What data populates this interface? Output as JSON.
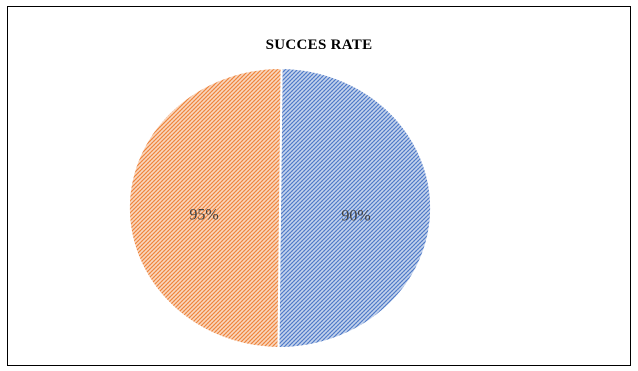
{
  "chart_data": {
    "type": "pie",
    "title": "SUCCES RATE",
    "slices": [
      {
        "label": "90%",
        "value": 50,
        "color": "#4472C4"
      },
      {
        "label": "95%",
        "value": 50,
        "color": "#ED7D31"
      }
    ],
    "start_angle_deg": 0.6,
    "direction": "clockwise",
    "fill_pattern": "hatched",
    "legend": "none"
  }
}
